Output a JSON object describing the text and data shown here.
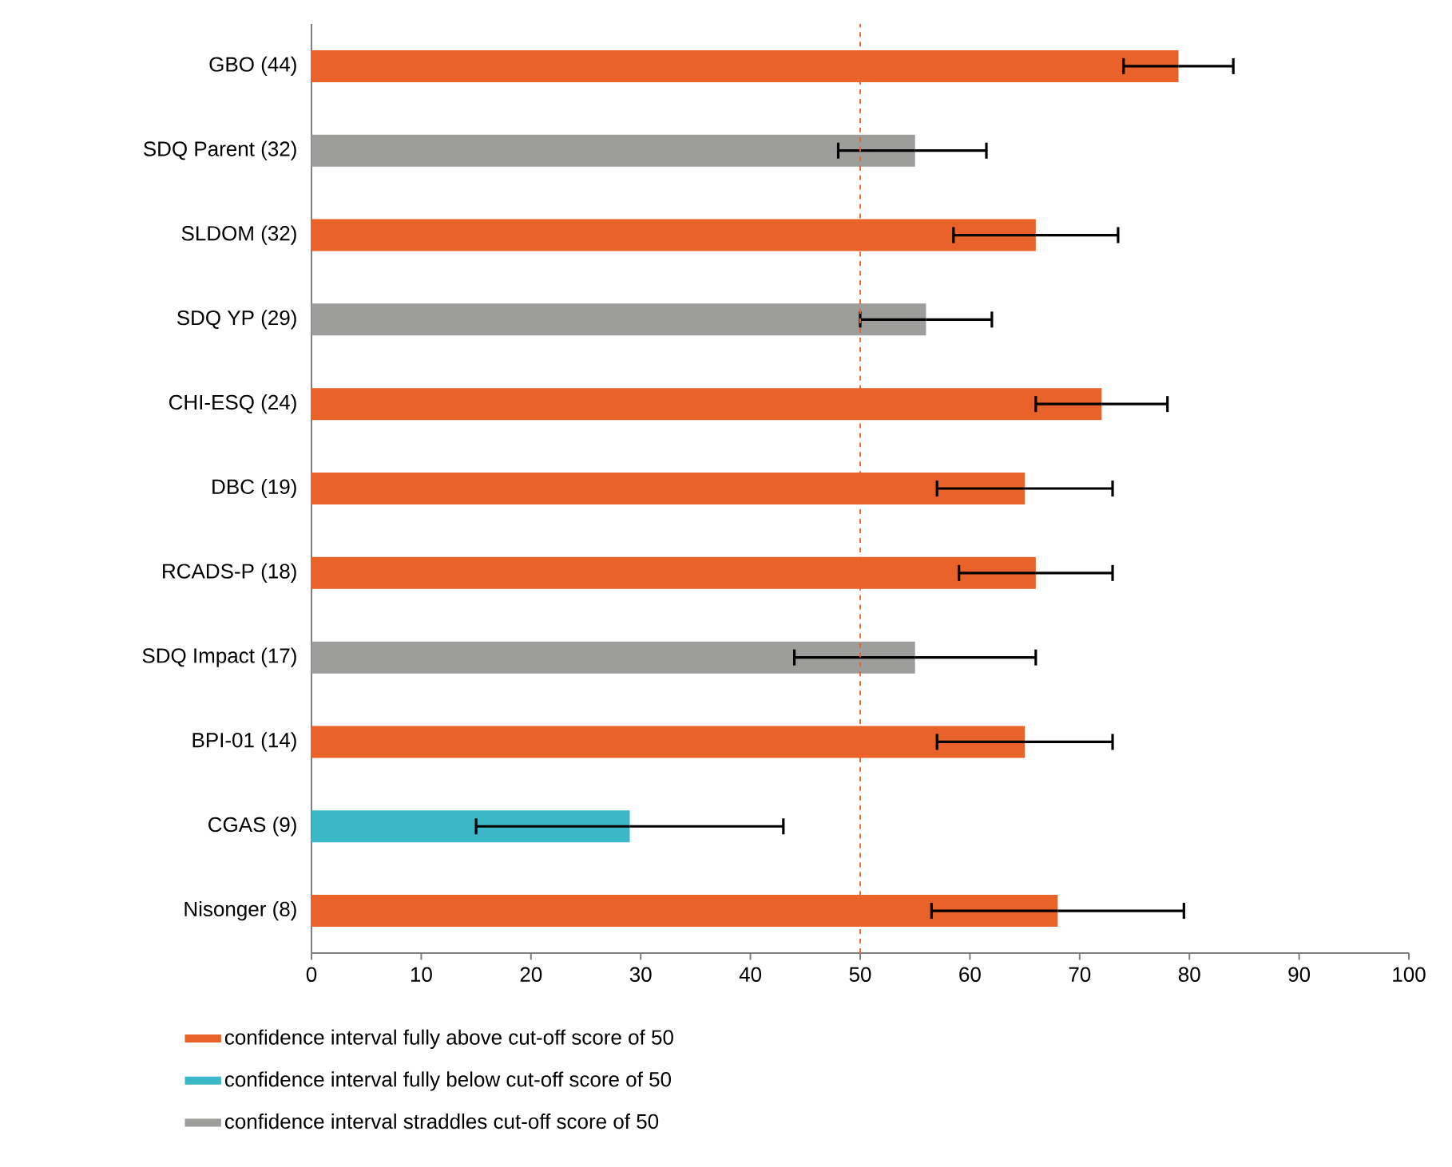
{
  "chart_data": {
    "type": "bar",
    "orientation": "horizontal",
    "categories": [
      "GBO (44)",
      "SDQ  Parent (32)",
      "SLDOM (32)",
      "SDQ YP (29)",
      "CHI-ESQ (24)",
      "DBC (19)",
      "RCADS-P (18)",
      "SDQ Impact (17)",
      "BPI-01 (14)",
      "CGAS (9)",
      "Nisonger (8)"
    ],
    "series": [
      {
        "name": "confidence interval fully above cut-off score of 50",
        "color": "#e8622a",
        "values": [
          79,
          null,
          66,
          null,
          72,
          65,
          66,
          null,
          65,
          null,
          68
        ],
        "errors": [
          [
            74,
            84
          ],
          null,
          [
            58.5,
            73.5
          ],
          null,
          [
            66,
            78
          ],
          [
            57,
            73
          ],
          [
            59,
            73
          ],
          null,
          [
            57,
            73
          ],
          null,
          [
            56.5,
            79.5
          ]
        ]
      },
      {
        "name": "confidence interval fully below cut-off score of 50",
        "color": "#3bb8c8",
        "values": [
          null,
          null,
          null,
          null,
          null,
          null,
          null,
          null,
          null,
          29,
          null
        ],
        "errors": [
          null,
          null,
          null,
          null,
          null,
          null,
          null,
          null,
          null,
          [
            15,
            43
          ],
          null
        ]
      },
      {
        "name": "confidence interval straddles cut-off score of 50",
        "color": "#9d9d9b",
        "values": [
          null,
          55,
          null,
          56,
          null,
          null,
          null,
          55,
          null,
          null,
          null
        ],
        "errors": [
          null,
          [
            48,
            61.5
          ],
          null,
          [
            50,
            62
          ],
          null,
          null,
          null,
          [
            44,
            66
          ],
          null,
          null,
          null
        ]
      }
    ],
    "xlim": [
      0,
      100
    ],
    "xticks": [
      0,
      10,
      20,
      30,
      40,
      50,
      60,
      70,
      80,
      90,
      100
    ],
    "ref_lines": [
      {
        "axis": "x",
        "value": 50,
        "color": "#e8622a",
        "line_style": "dashed"
      }
    ],
    "legend": "bottom"
  }
}
